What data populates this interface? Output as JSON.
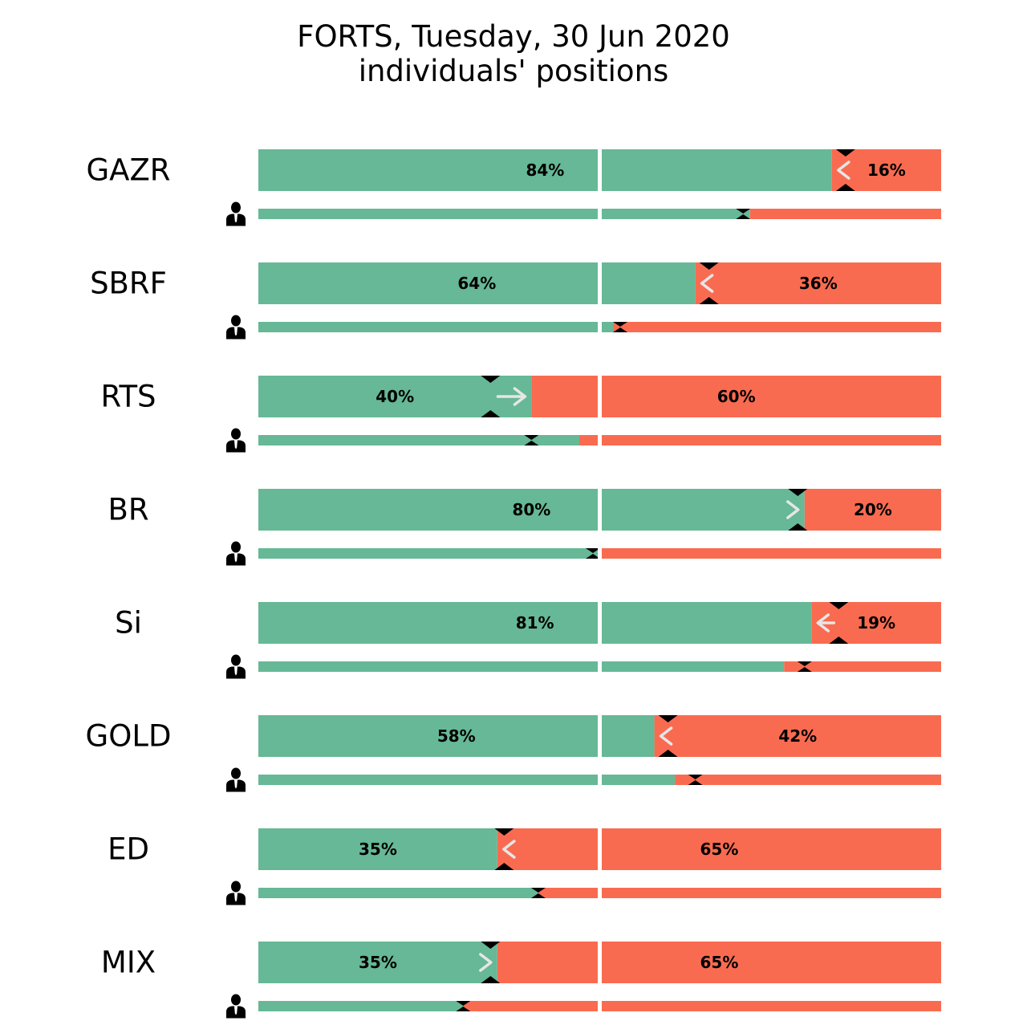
{
  "title": "FORTS, Tuesday, 30 Jun 2020",
  "subtitle": "individuals' positions",
  "colors": {
    "long": "#66b896",
    "short": "#f96b50",
    "marker": "#000000",
    "arrow": "#e6e6e6"
  },
  "chart_data": {
    "type": "bar",
    "orientation": "horizontal",
    "stacked": true,
    "xlim": [
      0,
      100
    ],
    "grid": false,
    "legend": "none",
    "icon": "person-icon",
    "rows": [
      {
        "ticker": "GAZR",
        "long_pct": 84,
        "short_pct": 16,
        "long_label": "84%",
        "short_label": "16%",
        "prev_long_pct": 86,
        "arrow": "left",
        "individuals_long_pct": 72,
        "individuals_prev_long_pct": 71
      },
      {
        "ticker": "SBRF",
        "long_pct": 64,
        "short_pct": 36,
        "long_label": "64%",
        "short_label": "36%",
        "prev_long_pct": 66,
        "arrow": "left",
        "individuals_long_pct": 52,
        "individuals_prev_long_pct": 53
      },
      {
        "ticker": "RTS",
        "long_pct": 40,
        "short_pct": 60,
        "long_label": "40%",
        "short_label": "60%",
        "prev_long_pct": 34,
        "arrow": "right",
        "individuals_long_pct": 47,
        "individuals_prev_long_pct": 40
      },
      {
        "ticker": "BR",
        "long_pct": 80,
        "short_pct": 20,
        "long_label": "80%",
        "short_label": "20%",
        "prev_long_pct": 79,
        "arrow": "right",
        "individuals_long_pct": 50,
        "individuals_prev_long_pct": 49
      },
      {
        "ticker": "Si",
        "long_pct": 81,
        "short_pct": 19,
        "long_label": "81%",
        "short_label": "19%",
        "prev_long_pct": 85,
        "arrow": "left",
        "individuals_long_pct": 77,
        "individuals_prev_long_pct": 80
      },
      {
        "ticker": "GOLD",
        "long_pct": 58,
        "short_pct": 42,
        "long_label": "58%",
        "short_label": "42%",
        "prev_long_pct": 60,
        "arrow": "left",
        "individuals_long_pct": 61,
        "individuals_prev_long_pct": 64
      },
      {
        "ticker": "ED",
        "long_pct": 35,
        "short_pct": 65,
        "long_label": "35%",
        "short_label": "65%",
        "prev_long_pct": 36,
        "arrow": "left",
        "individuals_long_pct": 41,
        "individuals_prev_long_pct": 41
      },
      {
        "ticker": "MIX",
        "long_pct": 35,
        "short_pct": 65,
        "long_label": "35%",
        "short_label": "65%",
        "prev_long_pct": 34,
        "arrow": "right",
        "individuals_long_pct": 30,
        "individuals_prev_long_pct": 30
      }
    ]
  }
}
